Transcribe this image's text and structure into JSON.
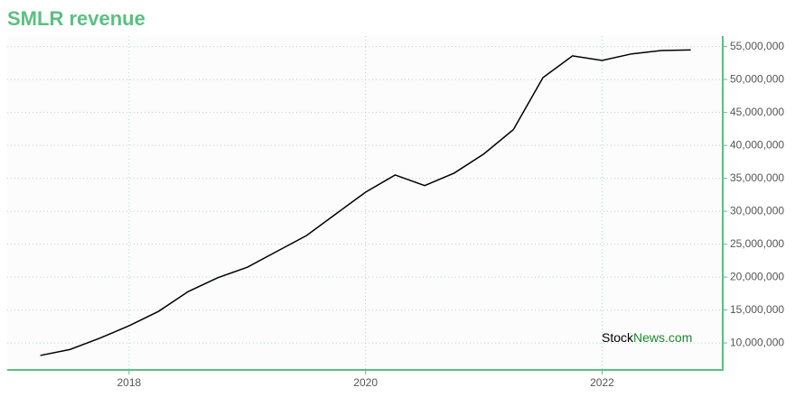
{
  "chart_data": {
    "type": "line",
    "title": "SMLR revenue",
    "x": [
      2017.25,
      2017.5,
      2017.75,
      2018.0,
      2018.25,
      2018.5,
      2018.75,
      2019.0,
      2019.25,
      2019.5,
      2019.75,
      2020.0,
      2020.25,
      2020.5,
      2020.75,
      2021.0,
      2021.25,
      2021.5,
      2021.75,
      2022.0,
      2022.25,
      2022.5,
      2022.75
    ],
    "series": [
      {
        "name": "SMLR revenue",
        "color": "#000000",
        "values": [
          8100000,
          9000000,
          10700000,
          12600000,
          14800000,
          17800000,
          19900000,
          21500000,
          23900000,
          26300000,
          29600000,
          32900000,
          35500000,
          33900000,
          35800000,
          38700000,
          42400000,
          50300000,
          53600000,
          52900000,
          53900000,
          54400000,
          54500000
        ]
      }
    ],
    "xlim": [
      2016.97,
      2023.02
    ],
    "xticks": [
      2018,
      2020,
      2022
    ],
    "ylim": [
      5900000,
      56600000
    ],
    "yticks": [
      {
        "value": 10000000,
        "label": "10,000,000"
      },
      {
        "value": 15000000,
        "label": "15,000,000"
      },
      {
        "value": 20000000,
        "label": "20,000,000"
      },
      {
        "value": 25000000,
        "label": "25,000,000"
      },
      {
        "value": 30000000,
        "label": "30,000,000"
      },
      {
        "value": 35000000,
        "label": "35,000,000"
      },
      {
        "value": 40000000,
        "label": "40,000,000"
      },
      {
        "value": 45000000,
        "label": "45,000,000"
      },
      {
        "value": 50000000,
        "label": "50,000,000"
      },
      {
        "value": 55000000,
        "label": "55,000,000"
      }
    ],
    "grid": true,
    "watermark": {
      "prefix": "Stock",
      "suffix": "News.com"
    }
  }
}
